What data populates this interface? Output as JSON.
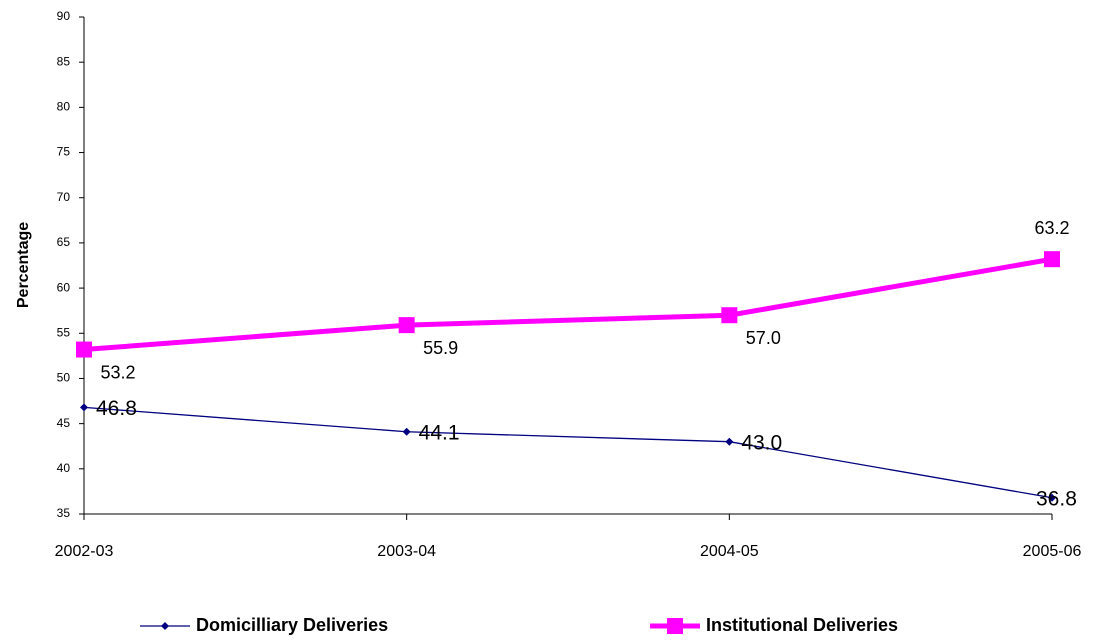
{
  "chart_data": {
    "type": "line",
    "y_label": "Percentage",
    "categories": [
      "2002-03",
      "2003-04",
      "2004-05",
      "2005-06"
    ],
    "series": [
      {
        "name": "Domicilliary Deliveries",
        "color": "#000080",
        "marker": "diamond",
        "values": [
          46.8,
          44.1,
          43.0,
          36.8
        ],
        "value_labels": [
          "46.8",
          "44.1",
          "43.0",
          "36.8"
        ]
      },
      {
        "name": "Institutional Deliveries",
        "color": "#ff00ff",
        "marker": "square",
        "values": [
          53.2,
          55.9,
          57.0,
          63.2
        ],
        "value_labels": [
          "53.2",
          "55.9",
          "57.0",
          "63.2"
        ]
      }
    ],
    "ylim": [
      35,
      90
    ],
    "yticks": [
      35,
      40,
      45,
      50,
      55,
      60,
      65,
      70,
      75,
      80,
      85,
      90
    ],
    "grid": false
  }
}
